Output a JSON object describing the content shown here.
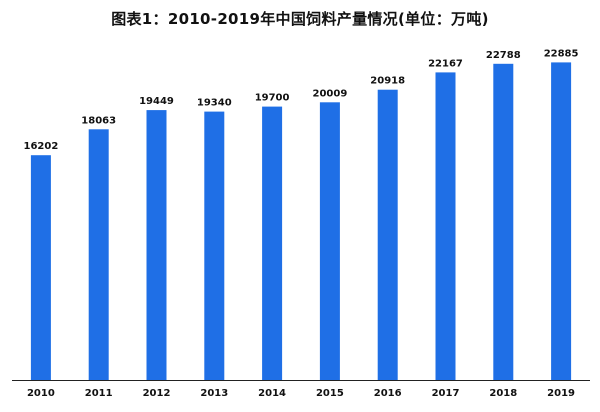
{
  "chart_data": {
    "type": "bar",
    "title": "图表1：2010-2019年中国饲料产量情况(单位：万吨)",
    "categories": [
      "2010",
      "2011",
      "2012",
      "2013",
      "2014",
      "2015",
      "2016",
      "2017",
      "2018",
      "2019"
    ],
    "values": [
      16202,
      18063,
      19449,
      19340,
      19700,
      20009,
      20918,
      22167,
      22788,
      22885
    ],
    "data_labels": [
      "16202",
      "18063",
      "19449",
      "19340",
      "19700",
      "20009",
      "20918",
      "22167",
      "22788",
      "22885"
    ],
    "xlabel": "",
    "ylabel": "",
    "ylim": [
      0,
      24500
    ],
    "grid": false,
    "legend": "none",
    "colors": {
      "bar": "#1f6fe6",
      "axis": "#222222",
      "text": "#111111"
    }
  }
}
